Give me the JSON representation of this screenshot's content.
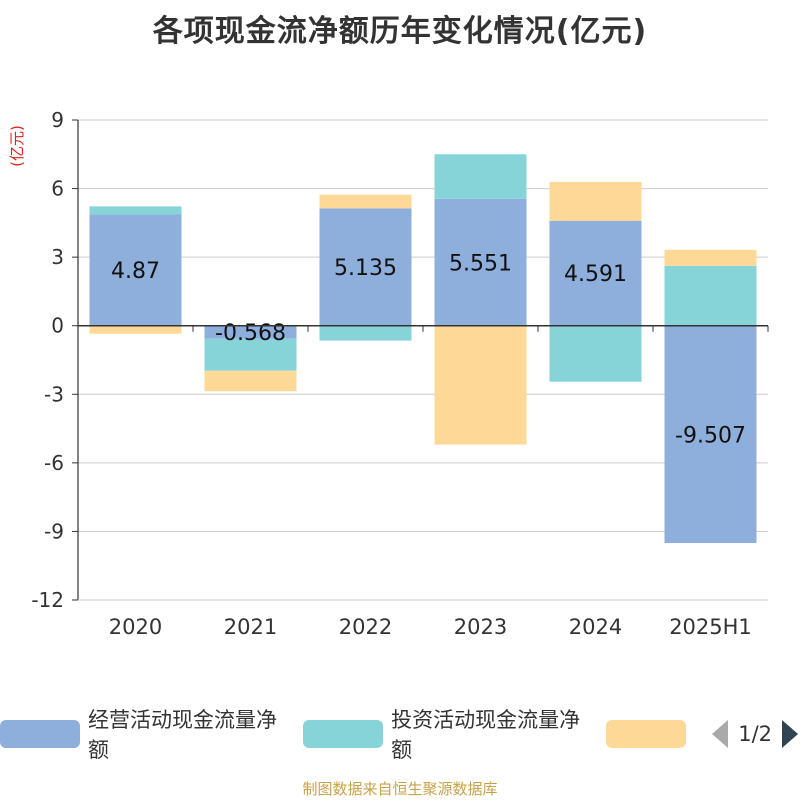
{
  "chart_data": {
    "type": "bar",
    "stacked": true,
    "title": "各项现金流净额历年变化情况(亿元)",
    "ylabel": "(亿元)",
    "categories": [
      "2020",
      "2021",
      "2022",
      "2023",
      "2024",
      "2025H1"
    ],
    "ylim": [
      -12,
      9
    ],
    "yticks": [
      9,
      6,
      3,
      0,
      -3,
      -6,
      -9,
      -12
    ],
    "grid": true,
    "legend_position": "bottom",
    "series": [
      {
        "name": "经营活动现金流量净额",
        "color": "#8eaedb",
        "values": [
          4.87,
          -0.568,
          5.135,
          5.551,
          4.591,
          -9.507
        ],
        "labels": [
          "4.87",
          "-0.568",
          "5.135",
          "5.551",
          "4.591",
          "-9.507"
        ]
      },
      {
        "name": "投资活动现金流量净额",
        "color": "#86d4d8",
        "values": [
          0.35,
          -1.4,
          -0.65,
          1.95,
          -2.45,
          2.62
        ]
      },
      {
        "name": "",
        "color": "#fed897",
        "values": [
          -0.35,
          -0.9,
          0.6,
          -5.2,
          1.7,
          0.7
        ]
      }
    ]
  },
  "legend": {
    "items": [
      "经营活动现金流量净额",
      "投资活动现金流量净额",
      ""
    ],
    "page": "1/2"
  },
  "source": "制图数据来自恒生聚源数据库"
}
